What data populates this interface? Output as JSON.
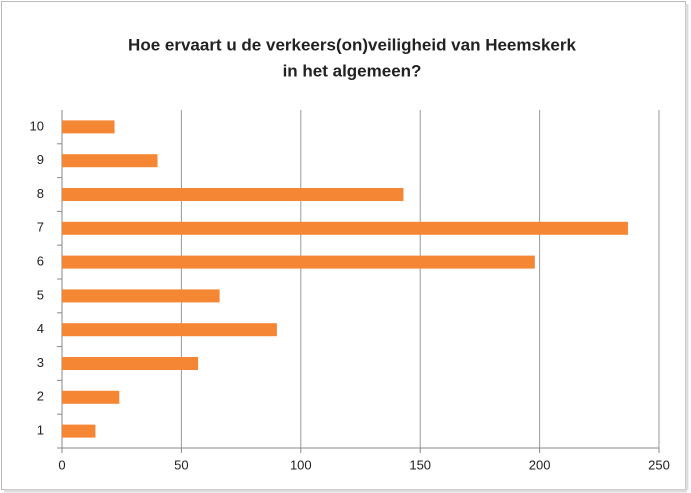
{
  "chart_data": {
    "type": "bar",
    "orientation": "horizontal",
    "title": [
      "Hoe ervaart u de verkeers(on)veiligheid van Heemskerk",
      "in het algemeen?"
    ],
    "categories": [
      "1",
      "2",
      "3",
      "4",
      "5",
      "6",
      "7",
      "8",
      "9",
      "10"
    ],
    "values": [
      14,
      24,
      57,
      90,
      66,
      198,
      237,
      143,
      40,
      22
    ],
    "color": "#f58634",
    "xlim": [
      0,
      250
    ],
    "xticks": [
      0,
      50,
      100,
      150,
      200,
      250
    ],
    "grid": true
  }
}
